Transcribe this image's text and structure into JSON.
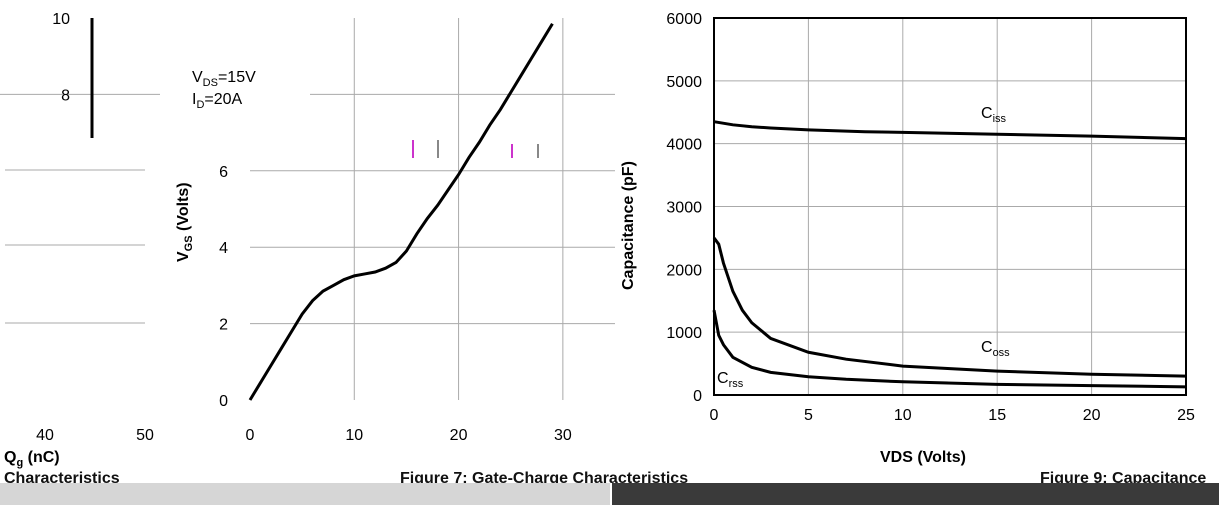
{
  "chart_data": [
    {
      "type": "line",
      "title": "",
      "xlabel": "",
      "ylabel": "VGS (Volts)",
      "ylabel_main": "V",
      "ylabel_sub": "GS",
      "ylabel_tail": " (Volts)",
      "xlim": [
        0,
        35
      ],
      "ylim": [
        0,
        10
      ],
      "x_ticks": [
        "0",
        "10",
        "20",
        "30"
      ],
      "y_ticks": [
        "0",
        "2",
        "4",
        "6",
        "8",
        "10"
      ],
      "grid": true,
      "annotations": {
        "vds_main": "V",
        "vds_sub": "DS",
        "vds_tail": "=15V",
        "id_main": "I",
        "id_sub": "D",
        "id_tail": "=20A"
      },
      "series": [
        {
          "x": [
            0,
            1,
            2,
            3,
            4,
            5,
            6,
            7,
            8,
            9,
            10,
            11,
            12,
            13,
            14,
            15,
            16,
            17,
            18,
            19,
            20,
            21,
            22,
            23,
            24,
            25,
            26,
            27,
            28,
            29
          ],
          "values": [
            0,
            0.45,
            0.9,
            1.35,
            1.8,
            2.25,
            2.6,
            2.85,
            3.0,
            3.15,
            3.25,
            3.3,
            3.35,
            3.45,
            3.6,
            3.9,
            4.35,
            4.75,
            5.1,
            5.5,
            5.9,
            6.35,
            6.75,
            7.2,
            7.6,
            8.05,
            8.5,
            8.95,
            9.4,
            9.85
          ]
        }
      ]
    },
    {
      "type": "line",
      "title": "",
      "xlabel": "VDS (Volts)",
      "ylabel": "Capacitance (pF)",
      "xlim": [
        0,
        25
      ],
      "ylim": [
        0,
        6000
      ],
      "x_ticks": [
        "0",
        "5",
        "10",
        "15",
        "20",
        "25"
      ],
      "y_ticks": [
        "0",
        "1000",
        "2000",
        "3000",
        "4000",
        "5000",
        "6000"
      ],
      "grid": true,
      "series": [
        {
          "label_main": "C",
          "label_sub": "iss",
          "x": [
            0,
            1,
            2,
            3,
            5,
            8,
            10,
            15,
            20,
            25
          ],
          "values": [
            4350,
            4300,
            4270,
            4250,
            4220,
            4190,
            4180,
            4150,
            4120,
            4080
          ]
        },
        {
          "label_main": "C",
          "label_sub": "oss",
          "x": [
            0,
            0.25,
            0.5,
            1,
            1.5,
            2,
            3,
            5,
            7,
            10,
            15,
            20,
            25
          ],
          "values": [
            2500,
            2400,
            2100,
            1650,
            1350,
            1150,
            900,
            680,
            570,
            460,
            380,
            330,
            300
          ]
        },
        {
          "label_main": "C",
          "label_sub": "rss",
          "x": [
            0,
            0.25,
            0.5,
            1,
            2,
            3,
            5,
            7,
            10,
            15,
            20,
            25
          ],
          "values": [
            1350,
            950,
            800,
            600,
            440,
            360,
            290,
            250,
            210,
            170,
            150,
            130
          ]
        }
      ]
    }
  ],
  "fragments": {
    "left_ticks": [
      "40",
      "50"
    ],
    "qg_main": "Q",
    "qg_sub": "g",
    "qg_tail": " (nC)",
    "footer_left": "Characteristics",
    "footer_mid": "Figure 7: Gate-Charge Characteristics",
    "footer_right": "Figure 9: Capacitance"
  }
}
